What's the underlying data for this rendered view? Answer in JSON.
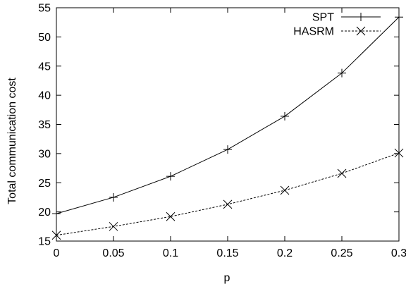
{
  "chart_data": {
    "type": "line",
    "title": "",
    "xlabel": "p",
    "ylabel": "Total communication cost",
    "x": [
      0,
      0.05,
      0.1,
      0.15,
      0.2,
      0.25,
      0.3
    ],
    "xlim": [
      0,
      0.3
    ],
    "ylim": [
      15,
      55
    ],
    "xticks": [
      "0",
      "0.05",
      "0.1",
      "0.15",
      "0.2",
      "0.25",
      "0.3"
    ],
    "yticks": [
      "15",
      "20",
      "25",
      "30",
      "35",
      "40",
      "45",
      "50",
      "55"
    ],
    "grid": false,
    "legend_position": "top-right",
    "series": [
      {
        "name": "SPT",
        "marker": "plus",
        "line_style": "solid",
        "color": "#000000",
        "values": [
          19.7,
          22.5,
          26.1,
          30.7,
          36.4,
          43.8,
          53.4
        ]
      },
      {
        "name": "HASRM",
        "marker": "cross",
        "line_style": "dashed",
        "color": "#000000",
        "values": [
          16.0,
          17.5,
          19.2,
          21.3,
          23.7,
          26.6,
          30.1
        ]
      }
    ]
  }
}
